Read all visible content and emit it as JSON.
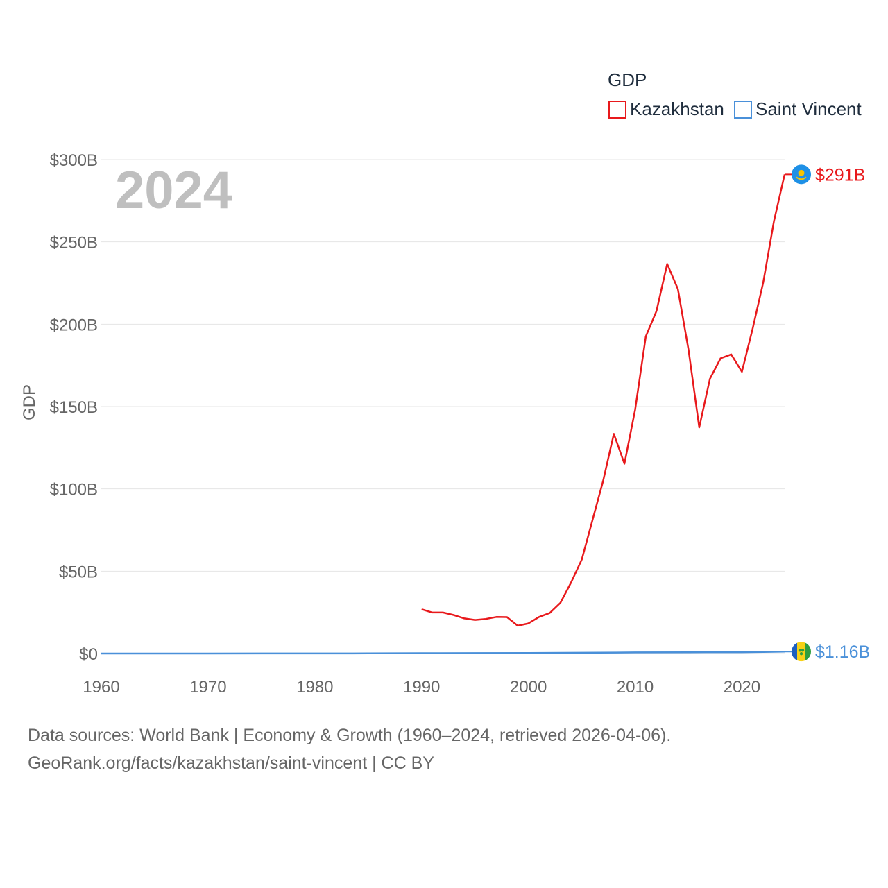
{
  "chart_data": {
    "type": "line",
    "legend_title": "GDP",
    "ylabel": "GDP",
    "xlabel": "",
    "year_label": "2024",
    "xlim": [
      1960,
      2024
    ],
    "ylim": [
      0,
      300
    ],
    "x_ticks": [
      1960,
      1970,
      1980,
      1990,
      2000,
      2010,
      2020
    ],
    "y_ticks": [
      {
        "value": 0,
        "label": "$0"
      },
      {
        "value": 50,
        "label": "$50B"
      },
      {
        "value": 100,
        "label": "$100B"
      },
      {
        "value": 150,
        "label": "$150B"
      },
      {
        "value": 200,
        "label": "$200B"
      },
      {
        "value": 250,
        "label": "$250B"
      },
      {
        "value": 300,
        "label": "$300B"
      }
    ],
    "grid": true,
    "legend_position": "top-right",
    "series": [
      {
        "name": "Kazakhstan",
        "color": "#e8191c",
        "end_label": "$291B",
        "flag_icon": "kazakhstan-flag-icon",
        "x": [
          1990,
          1991,
          1992,
          1993,
          1994,
          1995,
          1996,
          1997,
          1998,
          1999,
          2000,
          2001,
          2002,
          2003,
          2004,
          2005,
          2006,
          2007,
          2008,
          2009,
          2010,
          2011,
          2012,
          2013,
          2014,
          2015,
          2016,
          2017,
          2018,
          2019,
          2020,
          2021,
          2022,
          2023,
          2024
        ],
        "values": [
          26.9,
          24.9,
          24.9,
          23.4,
          21.3,
          20.4,
          21.0,
          22.2,
          22.1,
          16.9,
          18.3,
          22.2,
          24.6,
          30.8,
          43.2,
          57.1,
          81.0,
          104.9,
          133.4,
          115.3,
          148.0,
          192.6,
          208.0,
          236.6,
          221.4,
          184.4,
          137.3,
          166.8,
          179.3,
          181.7,
          171.1,
          197.1,
          225.5,
          262.6,
          291.0
        ]
      },
      {
        "name": "Saint Vincent",
        "color": "#4a90d9",
        "end_label": "$1.16B",
        "flag_icon": "saint-vincent-flag-icon",
        "x": [
          1960,
          1965,
          1970,
          1975,
          1980,
          1985,
          1990,
          1995,
          2000,
          2005,
          2010,
          2015,
          2020,
          2022,
          2024
        ],
        "values": [
          0.013,
          0.017,
          0.02,
          0.03,
          0.05,
          0.1,
          0.19,
          0.27,
          0.33,
          0.47,
          0.68,
          0.74,
          0.81,
          0.95,
          1.16
        ]
      }
    ]
  },
  "footer": {
    "line1": "Data sources: World Bank | Economy & Growth (1960–2024, retrieved 2026-04-06).",
    "line2": "GeoRank.org/facts/kazakhstan/saint-vincent | CC BY"
  }
}
